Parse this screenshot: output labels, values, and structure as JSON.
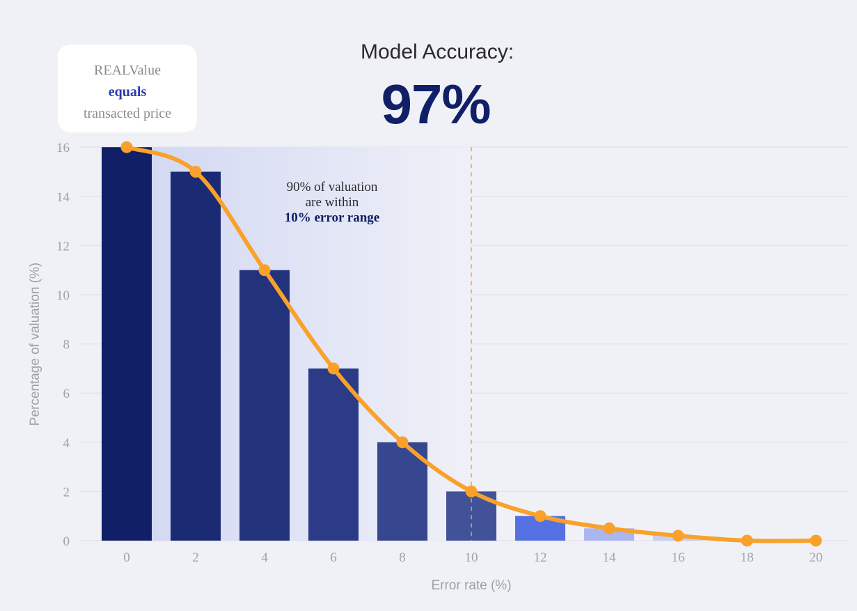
{
  "card": {
    "line1": "REALValue",
    "line2": "equals",
    "line3": "transacted price"
  },
  "header": {
    "title": "Model Accuracy:",
    "value": "97%"
  },
  "annotation": {
    "line1": "90% of valuation",
    "line2": "are within",
    "line3": "10% error range"
  },
  "colors": {
    "curve": "#f9a12b",
    "bar_dark": "#101f66",
    "bar_mid": "#5570e0",
    "bar_light": "#aab6ef",
    "background": "#f0f1f7"
  },
  "chart_data": {
    "type": "bar+line",
    "xlabel": "Error rate (%)",
    "ylabel": "Percentage of valuation (%)",
    "x_ticks": [
      "0",
      "2",
      "4",
      "6",
      "8",
      "10",
      "12",
      "14",
      "16",
      "18",
      "20"
    ],
    "y_ticks": [
      "0",
      "2",
      "4",
      "6",
      "8",
      "10",
      "12",
      "14",
      "16"
    ],
    "xlim": [
      0,
      20
    ],
    "ylim": [
      0,
      16
    ],
    "grid": true,
    "bars": {
      "x": [
        0,
        2,
        4,
        6,
        8,
        10,
        12,
        14,
        16
      ],
      "values": [
        16,
        15,
        11,
        7,
        4,
        2,
        1,
        0.5,
        0.2
      ]
    },
    "curve": {
      "x": [
        0,
        2,
        4,
        6,
        8,
        10,
        12,
        14,
        16,
        18,
        20
      ],
      "values": [
        16,
        15,
        11,
        7,
        4,
        2,
        1,
        0.5,
        0.2,
        0,
        0
      ]
    },
    "threshold_x": 10
  }
}
